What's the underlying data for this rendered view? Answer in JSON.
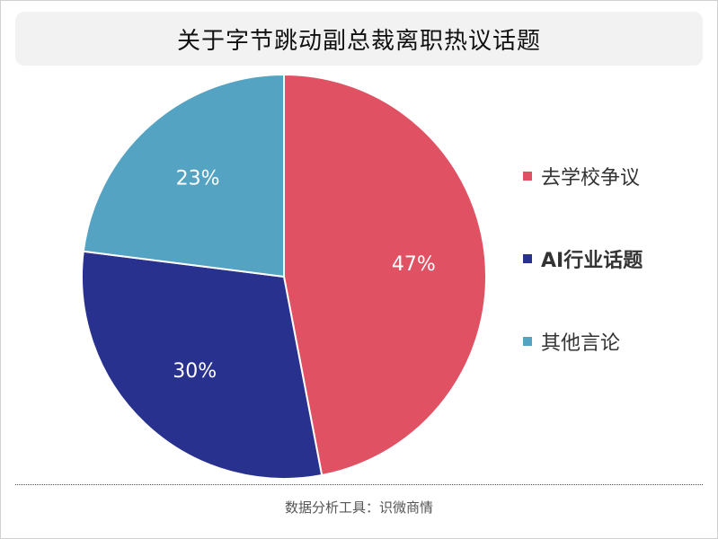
{
  "title": "关于字节跳动副总裁离职热议话题",
  "footer": "数据分析工具：识微商情",
  "chart_data": {
    "type": "pie",
    "title": "关于字节跳动副总裁离职热议话题",
    "categories": [
      "去学校争议",
      "AI行业话题",
      "其他言论"
    ],
    "values": [
      47,
      30,
      23
    ],
    "labels": [
      "47%",
      "30%",
      "23%"
    ],
    "colors": [
      "#e05263",
      "#29318f",
      "#54a3c3"
    ],
    "legend": "right"
  }
}
